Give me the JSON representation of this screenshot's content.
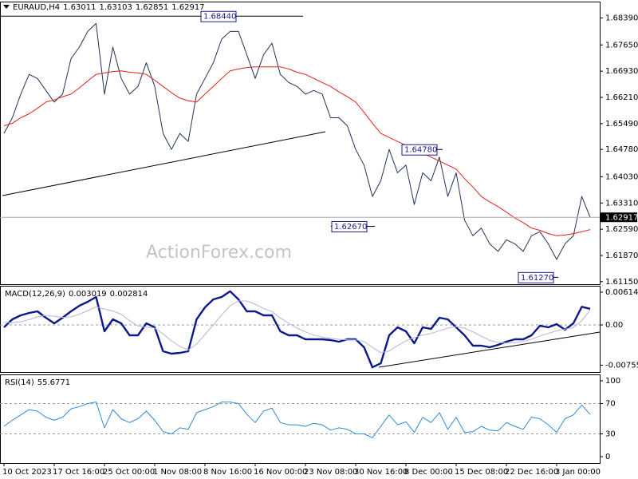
{
  "header": {
    "symbol": "EURAUD,H4",
    "open": 1.63011,
    "high": 1.63103,
    "low": 1.62851
  },
  "watermark": "ActionForex.com",
  "chart_data": [
    {
      "type": "line",
      "categories": [
        "10 Oct 2023",
        null,
        null,
        null,
        null,
        null,
        "17 Oct 16:00",
        null,
        null,
        null,
        null,
        null,
        "25 Oct 00:00",
        null,
        null,
        null,
        null,
        null,
        "1 Nov 08:00",
        null,
        null,
        null,
        null,
        null,
        "8 Nov 16:00",
        null,
        null,
        null,
        null,
        null,
        "16 Nov 00:00",
        null,
        null,
        null,
        null,
        null,
        "23 Nov 08:00",
        null,
        null,
        null,
        null,
        null,
        "30 Nov 16:00",
        null,
        null,
        null,
        null,
        null,
        "8 Dec 00:00",
        null,
        null,
        null,
        null,
        null,
        "15 Dec 08:00",
        null,
        null,
        null,
        null,
        null,
        "22 Dec 16:00",
        null,
        null,
        null,
        null,
        null,
        "3 Jan 00:00",
        null,
        null,
        null,
        null
      ],
      "series": [
        {
          "color": "#22325e",
          "values": [
            1.6522,
            1.6565,
            1.663,
            1.6684,
            1.6673,
            1.664,
            1.6608,
            1.663,
            1.6727,
            1.6759,
            1.6802,
            1.6824,
            1.663,
            1.6759,
            1.6673,
            1.663,
            1.6651,
            1.6716,
            1.6651,
            1.6522,
            1.6478,
            1.6522,
            1.65,
            1.663,
            1.6673,
            1.6716,
            1.6781,
            1.6802,
            1.6802,
            1.6738,
            1.6673,
            1.6738,
            1.677,
            1.6684,
            1.6662,
            1.6651,
            1.663,
            1.664,
            1.663,
            1.6565,
            1.6565,
            1.6543,
            1.6478,
            1.6435,
            1.6349,
            1.6392,
            1.6478,
            1.6414,
            1.6435,
            1.6327,
            1.6414,
            1.6392,
            1.6457,
            1.6349,
            1.6414,
            1.6284,
            1.6241,
            1.6262,
            1.6219,
            1.6198,
            1.623,
            1.6219,
            1.6198,
            1.6241,
            1.6252,
            1.6219,
            1.6176,
            1.6219,
            1.6241,
            1.6349,
            1.62917
          ]
        },
        {
          "color": "#e0201c",
          "values": [
            1.6543,
            1.655,
            1.6565,
            1.6576,
            1.6591,
            1.6608,
            1.6614,
            1.6623,
            1.663,
            1.6647,
            1.6666,
            1.6684,
            1.6688,
            1.6692,
            1.6694,
            1.669,
            1.6688,
            1.6684,
            1.6668,
            1.6651,
            1.6634,
            1.6619,
            1.6612,
            1.6608,
            1.663,
            1.6651,
            1.6673,
            1.6694,
            1.6699,
            1.6703,
            1.6705,
            1.6705,
            1.6705,
            1.6705,
            1.6699,
            1.669,
            1.6684,
            1.6673,
            1.6662,
            1.6651,
            1.6636,
            1.6623,
            1.6608,
            1.658,
            1.655,
            1.6522,
            1.6511,
            1.65,
            1.6489,
            1.6478,
            1.6468,
            1.6457,
            1.6446,
            1.6435,
            1.6424,
            1.6398,
            1.6375,
            1.6349,
            1.6334,
            1.6321,
            1.6306,
            1.629,
            1.6277,
            1.6262,
            1.6256,
            1.6247,
            1.6241,
            1.6243,
            1.6247,
            1.6252,
            1.6258
          ]
        }
      ],
      "ylim": [
        1.6108,
        1.6884
      ],
      "yticks": [
        {
          "value": 1.6839,
          "label": "1.68390"
        },
        {
          "value": 1.6765,
          "label": "1.67650"
        },
        {
          "value": 1.6693,
          "label": "1.66930"
        },
        {
          "value": 1.6621,
          "label": "1.66210"
        },
        {
          "value": 1.6549,
          "label": "1.65490"
        },
        {
          "value": 1.6478,
          "label": "1.64780"
        },
        {
          "value": 1.6403,
          "label": "1.64030"
        },
        {
          "value": 1.6331,
          "label": "1.63310"
        },
        {
          "value": 1.6259,
          "label": "1.62590"
        },
        {
          "value": 1.6187,
          "label": "1.61870"
        },
        {
          "value": 1.6115,
          "label": "1.61150"
        }
      ],
      "annotations": [
        {
          "value": 1.6844,
          "label": "1.68440"
        },
        {
          "value": 1.6478,
          "label": "1.64780"
        },
        {
          "value": 1.6267,
          "label": "1.62670"
        },
        {
          "value": 1.6127,
          "label": "1.61270"
        }
      ],
      "grid": false
    },
    {
      "type": "line",
      "title": "MACD(12,26,9)",
      "series": [
        {
          "color": "#0c1a86",
          "values": [
            -0.00045,
            0.00105,
            0.0018,
            0.00225,
            0.00255,
            0.00135,
            0.0003,
            0.00135,
            0.00255,
            0.0036,
            0.00435,
            0.00525,
            -0.0012,
            0.00105,
            0.0003,
            -0.00195,
            -0.00195,
            0.0003,
            -0.00045,
            -0.00495,
            -0.0054,
            -0.00525,
            -0.00495,
            0.00105,
            0.0033,
            0.0048,
            0.00525,
            0.0063,
            0.0048,
            0.00255,
            0.00255,
            0.0018,
            0.0018,
            -0.0012,
            -0.00195,
            -0.00195,
            -0.0027,
            -0.0027,
            -0.0027,
            -0.00285,
            -0.00315,
            -0.0027,
            -0.0027,
            -0.0042,
            -0.00795,
            -0.0072,
            -0.00195,
            -0.00045,
            -0.0012,
            -0.00345,
            -0.00045,
            -0.00075,
            0.00135,
            0.00105,
            -0.00045,
            -0.00195,
            -0.0039,
            -0.0039,
            -0.0042,
            -0.00375,
            -0.00315,
            -0.0027,
            -0.0027,
            -0.00195,
            -0.00015,
            -0.00045,
            0.00015,
            -0.0009,
            0.0003,
            0.0034,
            0.003019
          ]
        },
        {
          "color": "#b4b4dc",
          "values": [
            0.0005,
            0.0004,
            0.0006,
            0.001,
            0.0015,
            0.0018,
            0.0016,
            0.0014,
            0.0015,
            0.002,
            0.0027,
            0.0034,
            0.003,
            0.0026,
            0.002,
            0.0008,
            -0.0002,
            -0.0004,
            -0.0006,
            -0.0017,
            -0.003,
            -0.004,
            -0.0047,
            -0.0036,
            -0.0018,
            0.0,
            0.0019,
            0.0036,
            0.0045,
            0.0045,
            0.0039,
            0.0031,
            0.0025,
            0.0013,
            0.0003,
            -0.0006,
            -0.0013,
            -0.0019,
            -0.0023,
            -0.0025,
            -0.0027,
            -0.0028,
            -0.0028,
            -0.0031,
            -0.0042,
            -0.0052,
            -0.0049,
            -0.0039,
            -0.003,
            -0.0024,
            -0.0019,
            -0.0016,
            -0.0011,
            -0.0006,
            -0.0003,
            -0.0006,
            -0.0013,
            -0.0021,
            -0.0029,
            -0.0033,
            -0.0034,
            -0.0033,
            -0.0031,
            -0.0027,
            -0.0021,
            -0.0016,
            -0.0011,
            -0.0008,
            -0.0005,
            0.0008,
            0.002814
          ]
        }
      ],
      "ylim": [
        -0.00884,
        0.00734
      ],
      "yticks": [
        0.006144,
        {
          "value": 0,
          "label": "0.00"
        },
        -0.007555
      ],
      "grid": true
    },
    {
      "type": "line",
      "title": "RSI(14)",
      "series": [
        {
          "color": "#2e8bd8",
          "values": [
            40,
            48,
            55,
            62,
            60,
            52,
            48,
            52,
            63,
            66,
            70,
            72,
            38,
            62,
            50,
            45,
            50,
            60,
            48,
            33,
            30,
            38,
            36,
            58,
            62,
            66,
            72,
            72,
            70,
            56,
            45,
            60,
            64,
            45,
            42,
            42,
            40,
            44,
            42,
            35,
            38,
            36,
            30,
            30,
            25,
            40,
            55,
            42,
            46,
            32,
            52,
            45,
            58,
            36,
            52,
            32,
            33,
            40,
            35,
            34,
            45,
            40,
            36,
            52,
            50,
            42,
            32,
            50,
            55,
            68,
            55.6771
          ]
        }
      ],
      "ylim": [
        -8.4,
        108.4
      ],
      "yticks": [
        100,
        70,
        30,
        0
      ],
      "grid": true
    }
  ]
}
